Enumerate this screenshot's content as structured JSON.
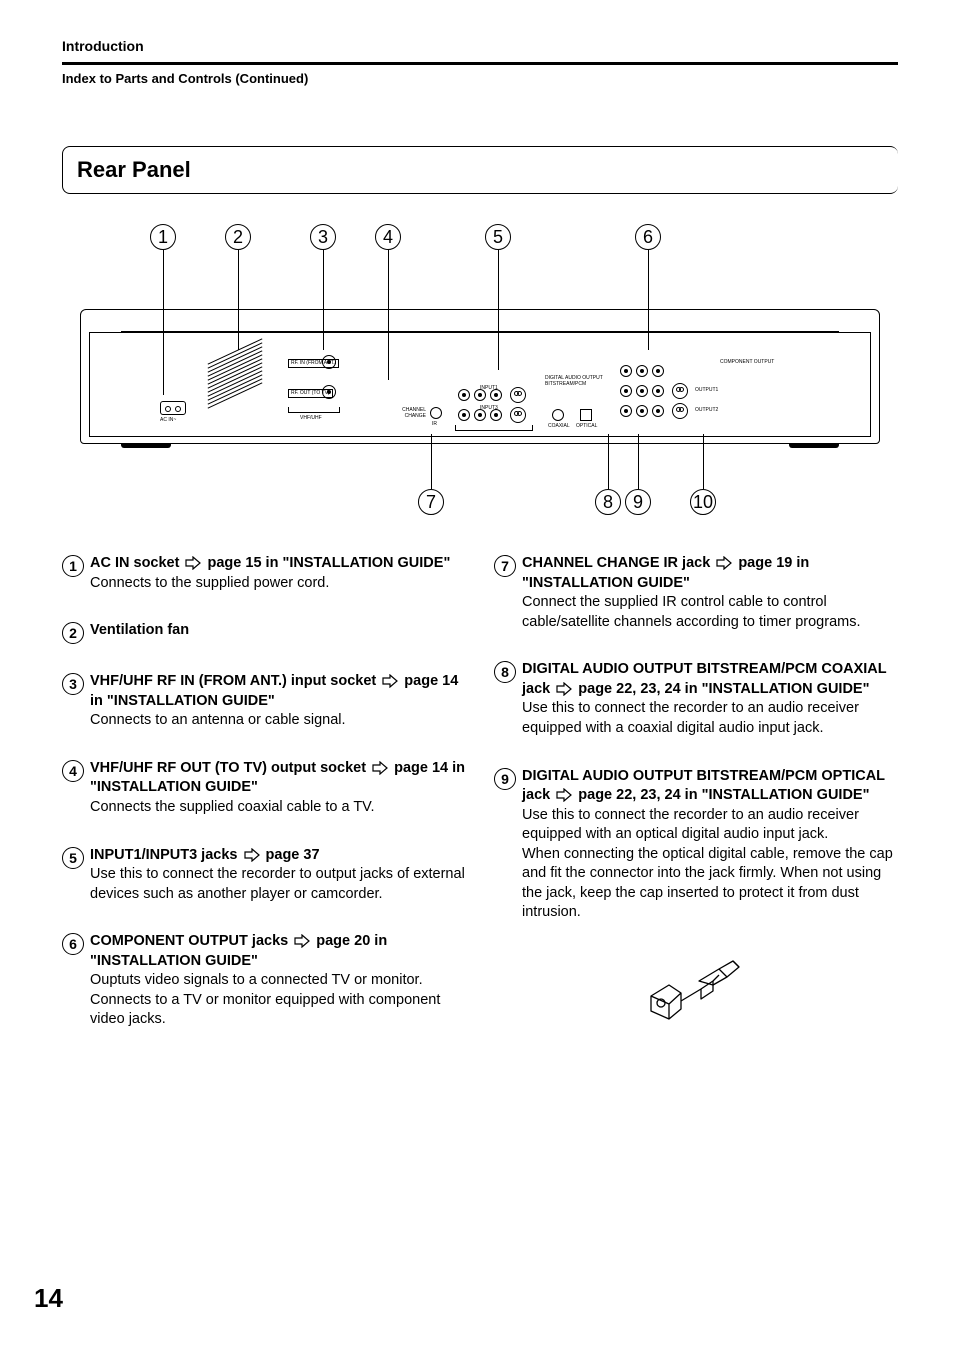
{
  "header": {
    "section": "Introduction",
    "continued": "Index to Parts and Controls (Continued)"
  },
  "title": "Rear Panel",
  "page_number": "14",
  "diagram": {
    "top_callouts": [
      "1",
      "2",
      "3",
      "4",
      "5",
      "6"
    ],
    "bottom_callouts": [
      "7",
      "8",
      "9",
      "10"
    ],
    "labels": {
      "rf_in": "RF. IN (FROM ANT.)",
      "rf_out": "RF. OUT (TO TV)",
      "vhf_uhf": "VHF/UHF",
      "ac_in": "AC IN~",
      "channel_change": "CHANNEL CHANGE",
      "ir": "IR",
      "input1": "INPUT1",
      "input3": "INPUT3",
      "s_video": "S-VIDEO",
      "l_audio_r": "L-AUDIO-R",
      "video": "VIDEO",
      "digital_audio_output": "DIGITAL AUDIO OUTPUT BITSTREAM/PCM",
      "coaxial": "COAXIAL",
      "optical": "OPTICAL",
      "component_output": "COMPONENT OUTPUT",
      "output1": "OUTPUT1",
      "output2": "OUTPUT2",
      "output3": "OUTPUT3"
    }
  },
  "items_left": [
    {
      "num": "1",
      "title_a": "AC IN socket ",
      "title_b": " page 15 in \"INSTALLATION GUIDE\"",
      "body": "Connects to the supplied power cord."
    },
    {
      "num": "2",
      "title_a": "Ventilation fan",
      "title_b": "",
      "body": ""
    },
    {
      "num": "3",
      "title_a": "VHF/UHF RF IN (FROM ANT.) input socket ",
      "title_b": " page 14 in \"INSTALLATION GUIDE\"",
      "body": "Connects to an antenna or cable signal."
    },
    {
      "num": "4",
      "title_a": "VHF/UHF RF OUT (TO TV) output socket ",
      "title_b": " page 14 in \"INSTALLATION GUIDE\"",
      "body": "Connects the supplied coaxial cable to a TV."
    },
    {
      "num": "5",
      "title_a": "INPUT1/INPUT3 jacks ",
      "title_b": " page 37",
      "body": "Use this to connect the recorder to output jacks of external devices such as another player or camcorder."
    },
    {
      "num": "6",
      "title_a": "COMPONENT OUTPUT jacks ",
      "title_b": " page 20 in \"INSTALLATION GUIDE\"",
      "body": "Ouptuts video signals to a connected TV or monitor.\nConnects to a TV or monitor equipped with component video jacks."
    }
  ],
  "items_right": [
    {
      "num": "7",
      "title_a": "CHANNEL CHANGE IR jack ",
      "title_b": " page 19 in \"INSTALLATION GUIDE\"",
      "body": "Connect the supplied IR control cable to control cable/satellite channels according to timer programs."
    },
    {
      "num": "8",
      "title_a": "DIGITAL AUDIO OUTPUT BITSTREAM/PCM COAXIAL jack ",
      "title_b": " page 22, 23, 24 in \"INSTALLATION GUIDE\"",
      "body": "Use this to connect the recorder to an audio receiver equipped with a coaxial digital audio input jack."
    },
    {
      "num": "9",
      "title_a": "DIGITAL AUDIO OUTPUT BITSTREAM/PCM OPTICAL jack ",
      "title_b": " page 22, 23, 24 in \"INSTALLATION GUIDE\"",
      "body": "Use this to connect the recorder to an audio receiver equipped with an optical digital audio input jack.\nWhen connecting the optical digital cable, remove the cap and fit the connector into the jack firmly. When not using the jack, keep the cap inserted to protect it from dust intrusion."
    }
  ]
}
